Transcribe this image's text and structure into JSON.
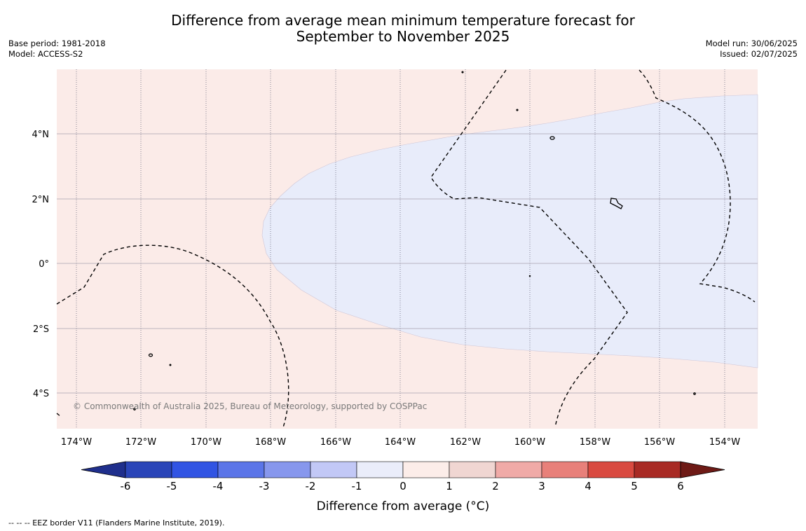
{
  "title": {
    "line1": "Difference from average mean minimum temperature forecast for",
    "line2": "September to November 2025"
  },
  "meta_left": {
    "base_period": "Base period: 1981-2018",
    "model": "Model: ACCESS-S2"
  },
  "meta_right": {
    "model_run": "Model run: 30/06/2025",
    "issued": "Issued: 02/07/2025"
  },
  "map": {
    "region": "Central Pacific, approx. 174.6°W–153°W, 5.2°S–5.9°N",
    "background_color": "#fbebe8",
    "anomaly_region_color": "#e8ecfa",
    "lon_labels": [
      "174°W",
      "172°W",
      "170°W",
      "168°W",
      "166°W",
      "164°W",
      "162°W",
      "160°W",
      "158°W",
      "156°W",
      "154°W"
    ],
    "lat_labels": [
      "4°N",
      "2°N",
      "0°",
      "2°S",
      "4°S"
    ],
    "copyright": "© Commonwealth of Australia 2025, Bureau of Meteorology, supported by COSPPac"
  },
  "colorbar": {
    "ticks": [
      "-6",
      "-5",
      "-4",
      "-3",
      "-2",
      "-1",
      "0",
      "1",
      "2",
      "3",
      "4",
      "5",
      "6"
    ],
    "colors": [
      "#1f2f8c",
      "#2a45b8",
      "#3154e3",
      "#5b75e8",
      "#8797ed",
      "#c2c8f6",
      "#eaedfa",
      "#fcede9",
      "#f0d6d2",
      "#f0aaa7",
      "#e8807a",
      "#d94a40",
      "#a82a24",
      "#6e1a16"
    ],
    "label": "Difference from average (°C)"
  },
  "footer": {
    "legend_text": "--  --  -- EEZ border V11 (Flanders Marine Institute, 2019)."
  }
}
